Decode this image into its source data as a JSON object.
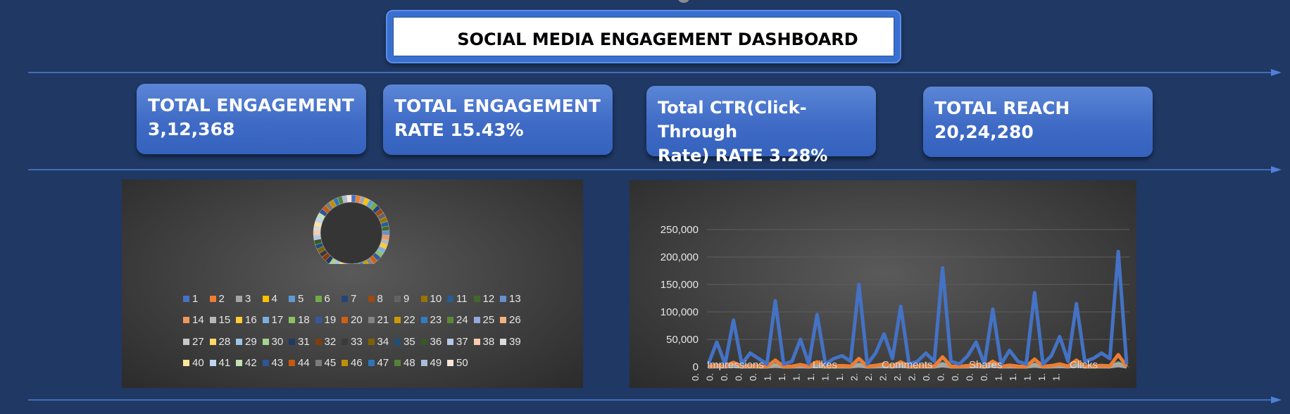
{
  "dashboard": {
    "title": "SOCIAL MEDIA ENGAGEMENT DASHBOARD"
  },
  "kpis": [
    {
      "line1": "TOTAL ENGAGEMENT",
      "line2": "3,12,368"
    },
    {
      "line1": "TOTAL ENGAGEMENT",
      "line2": "RATE  15.43%"
    },
    {
      "line1": "Total CTR(Click-Through",
      "line2": "Rate)   RATE  3.28%"
    },
    {
      "line1": "TOTAL REACH  20,24,280",
      "line2": ""
    }
  ],
  "colors": {
    "background": "#1f3864",
    "kpi_card": "#4472c4",
    "divider": "#4f7fd8"
  },
  "donut_legend": [
    "1",
    "2",
    "3",
    "4",
    "5",
    "6",
    "7",
    "8",
    "9",
    "10",
    "11",
    "12",
    "13",
    "14",
    "15",
    "16",
    "17",
    "18",
    "19",
    "20",
    "21",
    "22",
    "23",
    "24",
    "25",
    "26",
    "27",
    "28",
    "29",
    "30",
    "31",
    "32",
    "33",
    "34",
    "35",
    "36",
    "37",
    "38",
    "39",
    "40",
    "41",
    "42",
    "43",
    "44",
    "45",
    "46",
    "47",
    "48",
    "49",
    "50"
  ],
  "donut_palette": [
    "#4472c4",
    "#ed7d31",
    "#a5a5a5",
    "#ffc000",
    "#5b9bd5",
    "#70ad47",
    "#264478",
    "#9e480e",
    "#636363",
    "#997300",
    "#255e91",
    "#43682b",
    "#698ed0",
    "#f1975a",
    "#b7b7b7",
    "#ffcd33",
    "#7cafdd",
    "#8cc168",
    "#335aa1",
    "#d26012",
    "#848484",
    "#cc9a00",
    "#327dc2",
    "#5a8a39",
    "#8faadc",
    "#f4b183",
    "#c9c9c9",
    "#ffd966",
    "#9dc3e6",
    "#a9d18e",
    "#203864",
    "#843c0c",
    "#3a3a3a",
    "#7f6000",
    "#1f4e79",
    "#385723",
    "#b4c7e7",
    "#f8cbad",
    "#dbdbdb",
    "#ffe699",
    "#bdd7ee",
    "#c5e0b4",
    "#2f5597",
    "#c55a11",
    "#7b7b7b",
    "#bf9000",
    "#2e75b6",
    "#548235",
    "#a9bcd9",
    "#fbe5d6"
  ],
  "chart_data": {
    "type": "line",
    "title": "",
    "xlabel": "",
    "ylabel": "",
    "ylim": [
      0,
      250000
    ],
    "y_ticks": [
      "250,000",
      "200,000",
      "150,000",
      "100,000",
      "50,000",
      "0"
    ],
    "x_tick_labels": [
      "0.",
      "0.",
      "0.",
      "0.",
      "0.",
      "1.",
      "1.",
      "1.",
      "1.",
      "1.",
      "1.",
      "2.",
      "2.",
      "2.",
      "2.",
      "2.",
      "0.",
      "0.",
      "0.",
      "0.",
      "0.",
      "1.",
      "1.",
      "1.",
      "1.",
      "1."
    ],
    "series": [
      {
        "name": "Impressions",
        "color": "#4472c4",
        "values": [
          5000,
          45000,
          5000,
          85000,
          5000,
          25000,
          15000,
          5000,
          120000,
          5000,
          10000,
          50000,
          5000,
          95000,
          5000,
          15000,
          20000,
          10000,
          150000,
          5000,
          25000,
          60000,
          15000,
          110000,
          5000,
          10000,
          25000,
          10000,
          180000,
          10000,
          5000,
          20000,
          45000,
          5000,
          105000,
          5000,
          30000,
          10000,
          5000,
          135000,
          5000,
          20000,
          55000,
          10000,
          115000,
          10000,
          15000,
          25000,
          15000,
          210000,
          5000
        ]
      },
      {
        "name": "Likes",
        "color": "#ed7d31",
        "values": [
          500,
          3000,
          1000,
          8000,
          800,
          2000,
          1500,
          500,
          12000,
          600,
          1000,
          4000,
          700,
          9000,
          500,
          1500,
          2000,
          1000,
          15000,
          600,
          2500,
          5000,
          1500,
          9000,
          500,
          1000,
          2500,
          1000,
          18000,
          1000,
          600,
          2000,
          4000,
          500,
          10000,
          600,
          3000,
          1000,
          500,
          14000,
          600,
          2000,
          5000,
          1000,
          12000,
          1000,
          1500,
          2500,
          1500,
          22000,
          500
        ]
      },
      {
        "name": "Comments",
        "color": "#a5a5a5",
        "values": [
          100,
          400,
          200,
          900,
          150,
          300,
          250,
          100,
          1300,
          150,
          200,
          500,
          150,
          1000,
          100,
          250,
          300,
          200,
          1600,
          150,
          400,
          700,
          250,
          1100,
          100,
          200,
          400,
          200,
          2000,
          200,
          150,
          300,
          600,
          100,
          1200,
          150,
          450,
          200,
          100,
          1500,
          150,
          300,
          600,
          200,
          1300,
          200,
          250,
          400,
          250,
          2400,
          100
        ]
      },
      {
        "name": "Shares",
        "color": "#ffc000",
        "values": [
          100,
          800,
          300,
          1500,
          200,
          600,
          400,
          200,
          2000,
          200,
          300,
          900,
          200,
          1700,
          150,
          400,
          500,
          300,
          2500,
          200,
          700,
          1200,
          400,
          1900,
          150,
          300,
          600,
          300,
          3200,
          300,
          200,
          500,
          1000,
          150,
          2000,
          200,
          700,
          300,
          150,
          2600,
          200,
          500,
          1100,
          300,
          2200,
          300,
          400,
          600,
          400,
          3800,
          150
        ]
      },
      {
        "name": "Clicks",
        "color": "#5b9bd5",
        "values": [
          200,
          1500,
          500,
          2800,
          300,
          900,
          700,
          300,
          4000,
          300,
          500,
          1700,
          300,
          3200,
          300,
          700,
          900,
          500,
          5000,
          300,
          1100,
          2000,
          700,
          3700,
          300,
          500,
          1100,
          500,
          6000,
          500,
          300,
          900,
          1800,
          300,
          3500,
          300,
          1200,
          500,
          300,
          4600,
          300,
          900,
          2000,
          500,
          4000,
          500,
          700,
          1100,
          700,
          7000,
          300
        ]
      }
    ],
    "legend_position": "bottom-inside",
    "grid": true
  }
}
